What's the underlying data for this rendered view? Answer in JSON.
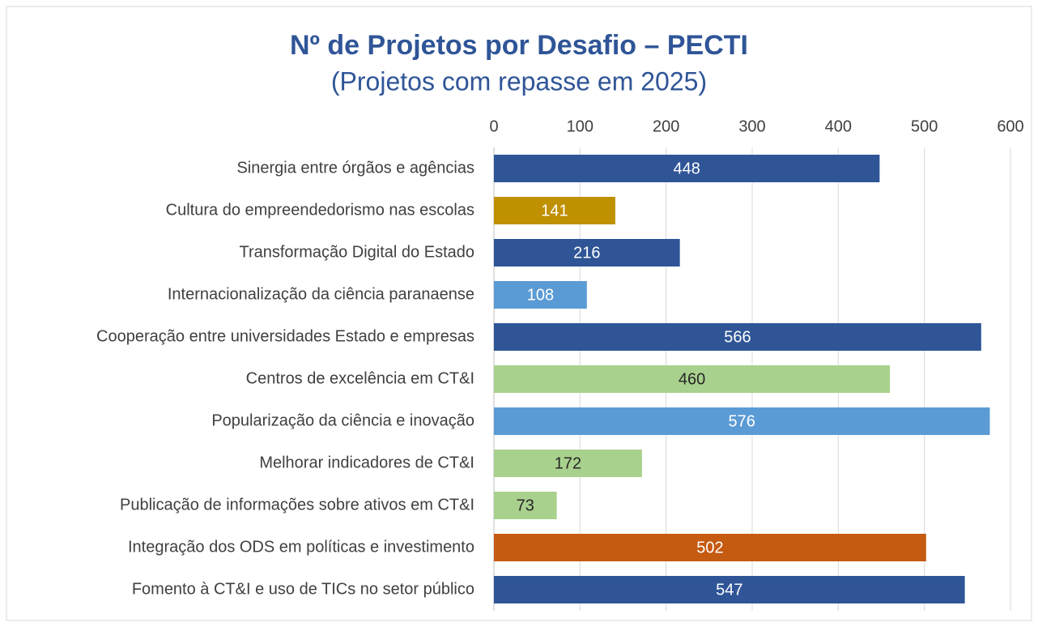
{
  "chart_data": {
    "type": "bar",
    "orientation": "horizontal",
    "title": "Nº de Projetos por Desafio – PECTI",
    "subtitle": "(Projetos com repasse em 2025)",
    "categories": [
      "Sinergia entre órgãos e agências",
      "Cultura do empreendedorismo nas escolas",
      "Transformação Digital do Estado",
      "Internacionalização da ciência paranaense",
      "Cooperação entre universidades Estado e empresas",
      "Centros de excelência em CT&I",
      "Popularização da ciência e inovação",
      "Melhorar indicadores de CT&I",
      "Publicação de informações sobre ativos em CT&I",
      "Integração dos ODS em políticas e investimento",
      "Fomento à CT&I e uso de TICs no setor público"
    ],
    "values": [
      448,
      141,
      216,
      108,
      566,
      460,
      576,
      172,
      73,
      502,
      547
    ],
    "colors": [
      "#2f5597",
      "#bf9000",
      "#2f5597",
      "#5b9bd5",
      "#2f5597",
      "#a9d18e",
      "#5b9bd5",
      "#a9d18e",
      "#a9d18e",
      "#c55a11",
      "#2f5597"
    ],
    "xlim": [
      0,
      600
    ],
    "xticks": [
      0,
      100,
      200,
      300,
      400,
      500,
      600
    ],
    "grid": true
  }
}
